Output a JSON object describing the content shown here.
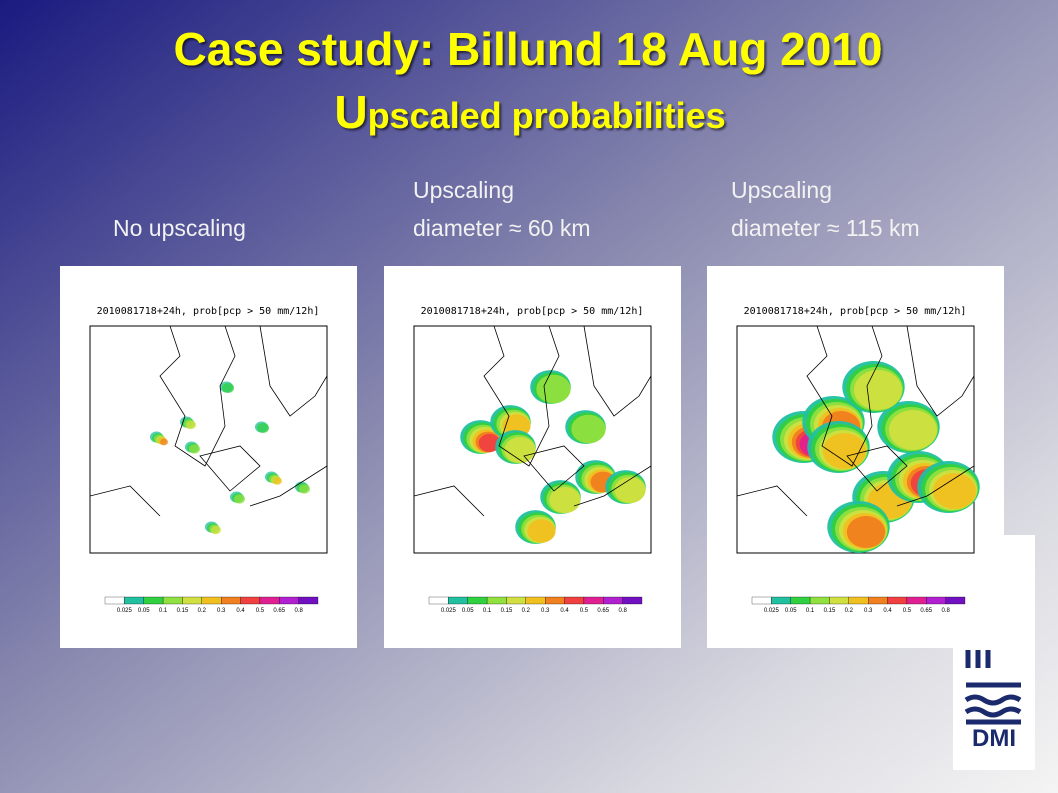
{
  "header": {
    "title": "Case study: Billund 18 Aug 2010",
    "subtitle": "Upscaled probabilities"
  },
  "panels": [
    {
      "label_lines": [
        "No upscaling"
      ],
      "map_title": "2010081718+24h, prob[pcp > 50 mm/12h]"
    },
    {
      "label_lines": [
        "Upscaling",
        "diameter ≈ 60 km"
      ],
      "map_title": "2010081718+24h, prob[pcp > 50 mm/12h]"
    },
    {
      "label_lines": [
        "Upscaling",
        "diameter ≈ 115 km"
      ],
      "map_title": "2010081718+24h, prob[pcp > 50 mm/12h]"
    }
  ],
  "colorbar": {
    "labels": [
      "0.025",
      "0.05",
      "0.1",
      "0.15",
      "0.2",
      "0.3",
      "0.4",
      "0.5",
      "0.65",
      "0.8"
    ]
  },
  "logo": {
    "text": "DMI"
  }
}
